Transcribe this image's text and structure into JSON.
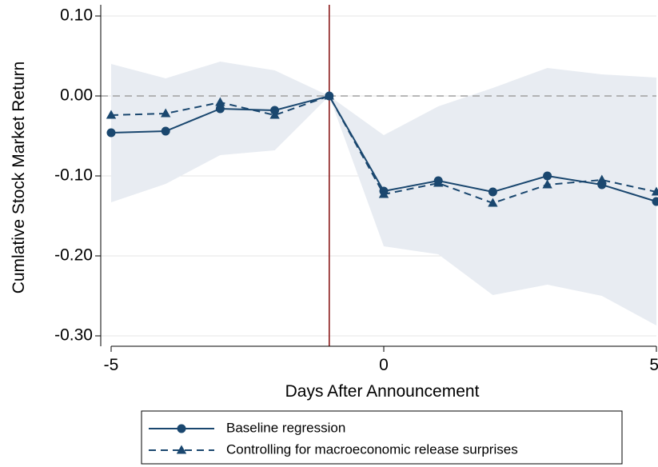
{
  "chart_data": {
    "type": "line",
    "xlabel": "Days After Announcement",
    "ylabel": "Cumlative Stock Market Return",
    "xlim": [
      -5,
      5
    ],
    "ylim": [
      -0.31,
      0.1
    ],
    "x_ticks": [
      -5,
      0,
      5
    ],
    "x_tick_labels": [
      "-5",
      "0",
      "5"
    ],
    "y_ticks": [
      0.1,
      0.0,
      -0.1,
      -0.2,
      -0.3
    ],
    "y_tick_labels": [
      "0.10",
      "0.00",
      "-0.10",
      "-0.20",
      "-0.30"
    ],
    "event_line_x": -1,
    "zero_line_y": 0,
    "x": [
      -5,
      -4,
      -3,
      -2,
      -1,
      0,
      1,
      2,
      3,
      4,
      5
    ],
    "series": [
      {
        "name": "Baseline regression",
        "style": "solid",
        "marker": "circle",
        "color": "#1a476f",
        "values": [
          -0.046,
          -0.044,
          -0.016,
          -0.018,
          0.0,
          -0.119,
          -0.106,
          -0.12,
          -0.1,
          -0.111,
          -0.132
        ]
      },
      {
        "name": "Controlling for macroeconomic release surprises",
        "style": "dashed",
        "marker": "triangle",
        "color": "#1a476f",
        "values": [
          -0.024,
          -0.022,
          -0.008,
          -0.024,
          0.0,
          -0.123,
          -0.109,
          -0.134,
          -0.111,
          -0.105,
          -0.12
        ]
      }
    ],
    "confidence_band": {
      "upper": [
        0.04,
        0.022,
        0.043,
        0.032,
        0.0,
        -0.049,
        -0.013,
        0.01,
        0.035,
        0.027,
        0.023
      ],
      "lower": [
        -0.133,
        -0.11,
        -0.074,
        -0.068,
        0.0,
        -0.188,
        -0.198,
        -0.249,
        -0.236,
        -0.25,
        -0.287
      ],
      "color": "#e8ecf2"
    },
    "colors": {
      "event_line": "#8b1a1a",
      "zero_line": "#a0a0a0",
      "grid": "#e6e6e6"
    },
    "grid": true,
    "legend_position": "bottom"
  }
}
